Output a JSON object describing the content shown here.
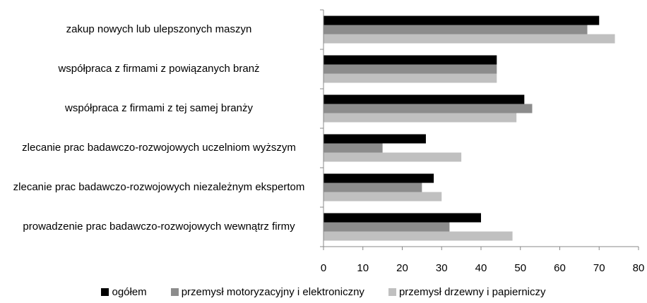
{
  "chart_data": {
    "type": "barh",
    "categories": [
      "zakup nowych lub ulepszonych maszyn",
      "współpraca z firmami z powiązanych branż",
      "współpraca z firmami z tej samej branży",
      "zlecanie prac badawczo-rozwojowych uczelniom wyższym",
      "zlecanie prac badawczo-rozwojowych niezależnym ekspertom",
      "prowadzenie prac badawczo-rozwojowych wewnątrz firmy"
    ],
    "series": [
      {
        "name": "ogółem",
        "color": "#000000",
        "values": [
          70,
          44,
          51,
          26,
          28,
          40
        ]
      },
      {
        "name": "przemysł motoryzacyjny i elektroniczny",
        "color": "#8c8c8c",
        "values": [
          67,
          44,
          53,
          15,
          25,
          32
        ]
      },
      {
        "name": "przemysł drzewny i papierniczy",
        "color": "#c0c0c0",
        "values": [
          74,
          44,
          49,
          35,
          30,
          48
        ]
      }
    ],
    "xlim": [
      0,
      80
    ],
    "xticks": [
      0,
      10,
      20,
      30,
      40,
      50,
      60,
      70,
      80
    ],
    "grid": false,
    "legend": "bottom"
  }
}
